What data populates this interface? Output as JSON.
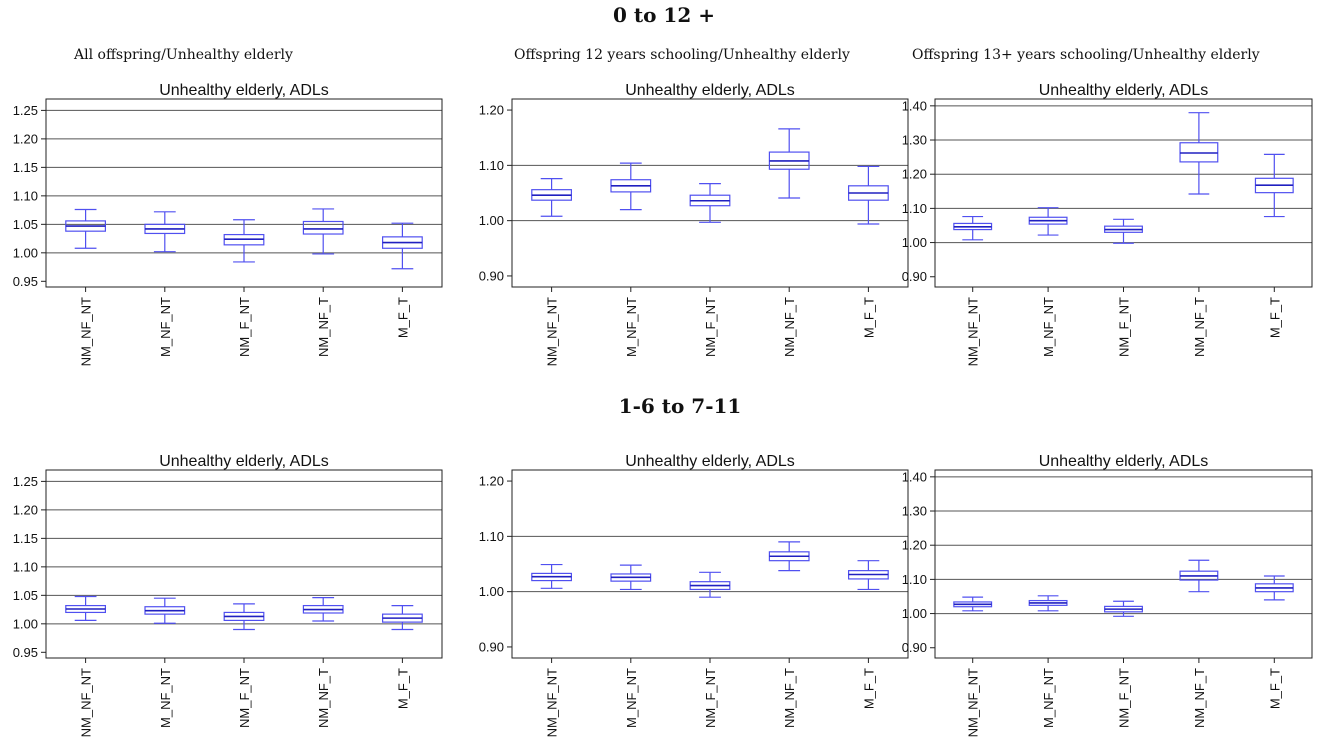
{
  "sections": [
    {
      "title": "0 to 12 +"
    },
    {
      "title": "1-6 to 7-11"
    }
  ],
  "columns": [
    {
      "title": "All offspring/Unhealthy elderly"
    },
    {
      "title": "Offspring 12  years schooling/Unhealthy elderly"
    },
    {
      "title": "Offspring 13+ years schooling/Unhealthy elderly"
    }
  ],
  "chart_data": [
    {
      "type": "box",
      "title": "Unhealthy elderly, ADLs",
      "categories": [
        "NM_NF_NT",
        "M_NF_NT",
        "NM_F_NT",
        "NM_NF_T",
        "M_F_T"
      ],
      "ylim": [
        0.94,
        1.27
      ],
      "yticks": [
        "0.95",
        "1.00",
        "1.05",
        "1.10",
        "1.15",
        "1.20",
        "1.25"
      ],
      "gridlines": [
        1.0,
        1.05,
        1.1,
        1.15,
        1.2,
        1.25
      ],
      "boxes": [
        {
          "min": 1.008,
          "q1": 1.038,
          "median": 1.047,
          "q3": 1.056,
          "max": 1.076
        },
        {
          "min": 1.002,
          "q1": 1.034,
          "median": 1.042,
          "q3": 1.05,
          "max": 1.072
        },
        {
          "min": 0.984,
          "q1": 1.014,
          "median": 1.024,
          "q3": 1.032,
          "max": 1.058
        },
        {
          "min": 0.998,
          "q1": 1.033,
          "median": 1.042,
          "q3": 1.055,
          "max": 1.077
        },
        {
          "min": 0.972,
          "q1": 1.008,
          "median": 1.018,
          "q3": 1.028,
          "max": 1.052
        }
      ]
    },
    {
      "type": "box",
      "title": "Unhealthy elderly, ADLs",
      "categories": [
        "NM_NF_NT",
        "M_NF_NT",
        "NM_F_NT",
        "NM_NF_T",
        "M_F_T"
      ],
      "ylim": [
        0.88,
        1.22
      ],
      "yticks": [
        "0.90",
        "1.00",
        "1.10",
        "1.20"
      ],
      "gridlines": [
        1.0,
        1.1
      ],
      "boxes": [
        {
          "min": 1.008,
          "q1": 1.037,
          "median": 1.046,
          "q3": 1.056,
          "max": 1.076
        },
        {
          "min": 1.02,
          "q1": 1.052,
          "median": 1.063,
          "q3": 1.074,
          "max": 1.104
        },
        {
          "min": 0.997,
          "q1": 1.027,
          "median": 1.036,
          "q3": 1.046,
          "max": 1.067
        },
        {
          "min": 1.041,
          "q1": 1.093,
          "median": 1.108,
          "q3": 1.124,
          "max": 1.166
        },
        {
          "min": 0.994,
          "q1": 1.037,
          "median": 1.05,
          "q3": 1.063,
          "max": 1.098
        }
      ]
    },
    {
      "type": "box",
      "title": "Unhealthy elderly, ADLs",
      "categories": [
        "NM_NF_NT",
        "M_NF_NT",
        "NM_F_NT",
        "NM_NF_T",
        "M_F_T"
      ],
      "ylim": [
        0.87,
        1.42
      ],
      "yticks": [
        "0.90",
        "1.00",
        "1.10",
        "1.20",
        "1.30",
        "1.40"
      ],
      "gridlines": [
        1.0,
        1.1,
        1.2,
        1.3,
        1.4
      ],
      "boxes": [
        {
          "min": 1.008,
          "q1": 1.038,
          "median": 1.046,
          "q3": 1.056,
          "max": 1.076
        },
        {
          "min": 1.022,
          "q1": 1.054,
          "median": 1.064,
          "q3": 1.074,
          "max": 1.102
        },
        {
          "min": 0.998,
          "q1": 1.03,
          "median": 1.038,
          "q3": 1.048,
          "max": 1.068
        },
        {
          "min": 1.142,
          "q1": 1.236,
          "median": 1.262,
          "q3": 1.292,
          "max": 1.38
        },
        {
          "min": 1.076,
          "q1": 1.146,
          "median": 1.168,
          "q3": 1.188,
          "max": 1.258
        }
      ]
    },
    {
      "type": "box",
      "title": "Unhealthy elderly, ADLs",
      "categories": [
        "NM_NF_NT",
        "M_NF_NT",
        "NM_F_NT",
        "NM_NF_T",
        "M_F_T"
      ],
      "ylim": [
        0.94,
        1.27
      ],
      "yticks": [
        "0.95",
        "1.00",
        "1.05",
        "1.10",
        "1.15",
        "1.20",
        "1.25"
      ],
      "gridlines": [
        1.0,
        1.05,
        1.1,
        1.15,
        1.2,
        1.25
      ],
      "boxes": [
        {
          "min": 1.006,
          "q1": 1.02,
          "median": 1.026,
          "q3": 1.032,
          "max": 1.048
        },
        {
          "min": 1.001,
          "q1": 1.017,
          "median": 1.023,
          "q3": 1.03,
          "max": 1.045
        },
        {
          "min": 0.99,
          "q1": 1.006,
          "median": 1.013,
          "q3": 1.02,
          "max": 1.035
        },
        {
          "min": 1.005,
          "q1": 1.019,
          "median": 1.025,
          "q3": 1.032,
          "max": 1.046
        },
        {
          "min": 0.99,
          "q1": 1.003,
          "median": 1.01,
          "q3": 1.017,
          "max": 1.032
        }
      ]
    },
    {
      "type": "box",
      "title": "Unhealthy elderly, ADLs",
      "categories": [
        "NM_NF_NT",
        "M_NF_NT",
        "NM_F_NT",
        "NM_NF_T",
        "M_F_T"
      ],
      "ylim": [
        0.88,
        1.22
      ],
      "yticks": [
        "0.90",
        "1.00",
        "1.10",
        "1.20"
      ],
      "gridlines": [
        1.0,
        1.1
      ],
      "boxes": [
        {
          "min": 1.006,
          "q1": 1.02,
          "median": 1.027,
          "q3": 1.033,
          "max": 1.049
        },
        {
          "min": 1.004,
          "q1": 1.019,
          "median": 1.026,
          "q3": 1.032,
          "max": 1.048
        },
        {
          "min": 0.99,
          "q1": 1.004,
          "median": 1.011,
          "q3": 1.018,
          "max": 1.035
        },
        {
          "min": 1.038,
          "q1": 1.056,
          "median": 1.064,
          "q3": 1.072,
          "max": 1.09
        },
        {
          "min": 1.004,
          "q1": 1.023,
          "median": 1.031,
          "q3": 1.038,
          "max": 1.056
        }
      ]
    },
    {
      "type": "box",
      "title": "Unhealthy elderly, ADLs",
      "categories": [
        "NM_NF_NT",
        "M_NF_NT",
        "NM_F_NT",
        "NM_NF_T",
        "M_F_T"
      ],
      "ylim": [
        0.87,
        1.42
      ],
      "yticks": [
        "0.90",
        "1.00",
        "1.10",
        "1.20",
        "1.30",
        "1.40"
      ],
      "gridlines": [
        1.0,
        1.1,
        1.2,
        1.3,
        1.4
      ],
      "boxes": [
        {
          "min": 1.008,
          "q1": 1.02,
          "median": 1.027,
          "q3": 1.034,
          "max": 1.048
        },
        {
          "min": 1.008,
          "q1": 1.024,
          "median": 1.031,
          "q3": 1.038,
          "max": 1.052
        },
        {
          "min": 0.992,
          "q1": 1.005,
          "median": 1.013,
          "q3": 1.021,
          "max": 1.036
        },
        {
          "min": 1.064,
          "q1": 1.098,
          "median": 1.11,
          "q3": 1.124,
          "max": 1.156
        },
        {
          "min": 1.04,
          "q1": 1.064,
          "median": 1.075,
          "q3": 1.087,
          "max": 1.11
        }
      ]
    }
  ]
}
